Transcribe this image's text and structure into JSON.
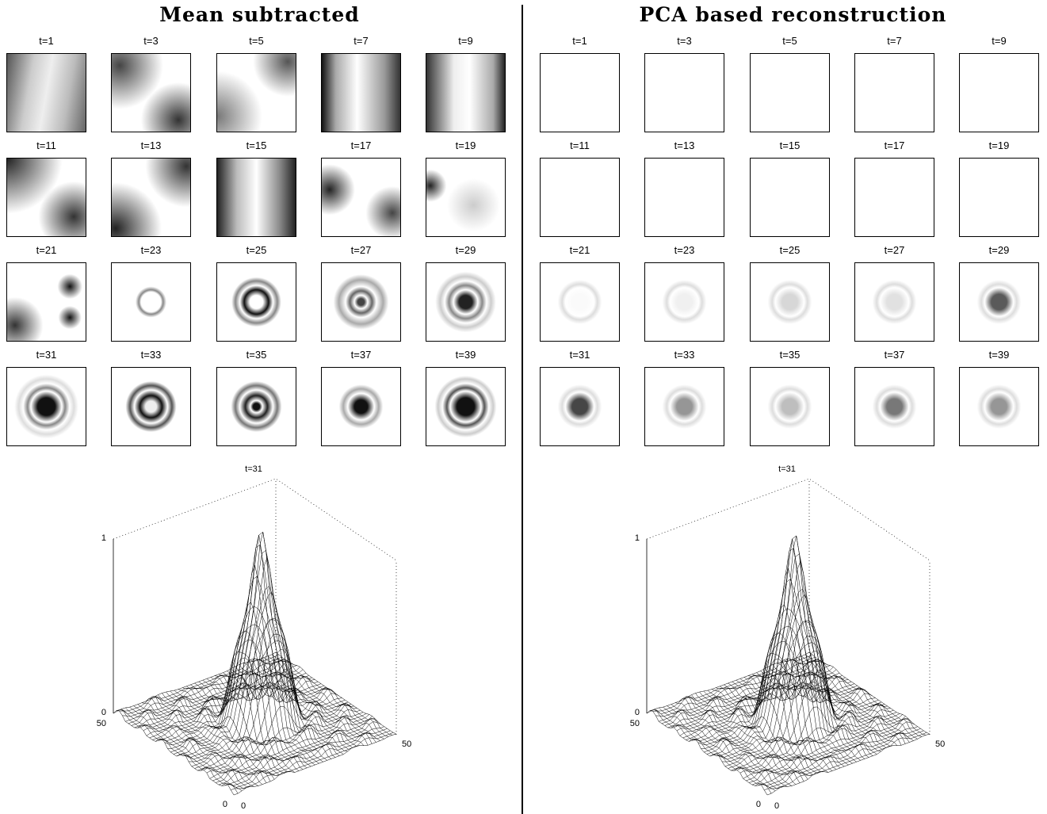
{
  "panels": [
    {
      "title": "Mean subtracted",
      "frames": [
        "t=1",
        "t=3",
        "t=5",
        "t=7",
        "t=9",
        "t=11",
        "t=13",
        "t=15",
        "t=17",
        "t=19",
        "t=21",
        "t=23",
        "t=25",
        "t=27",
        "t=29",
        "t=31",
        "t=33",
        "t=35",
        "t=37",
        "t=39"
      ],
      "surface": {
        "title": "t=31",
        "z_top": "1",
        "z_bottom": "0",
        "x_left": "50",
        "x_origin": "0",
        "y_origin": "0",
        "y_right": "50"
      }
    },
    {
      "title": "PCA based reconstruction",
      "frames": [
        "t=1",
        "t=3",
        "t=5",
        "t=7",
        "t=9",
        "t=11",
        "t=13",
        "t=15",
        "t=17",
        "t=19",
        "t=21",
        "t=23",
        "t=25",
        "t=27",
        "t=29",
        "t=31",
        "t=33",
        "t=35",
        "t=37",
        "t=39"
      ],
      "surface": {
        "title": "t=31",
        "z_top": "1",
        "z_bottom": "0",
        "x_left": "50",
        "x_origin": "0",
        "y_origin": "0",
        "y_right": "50"
      }
    }
  ]
}
